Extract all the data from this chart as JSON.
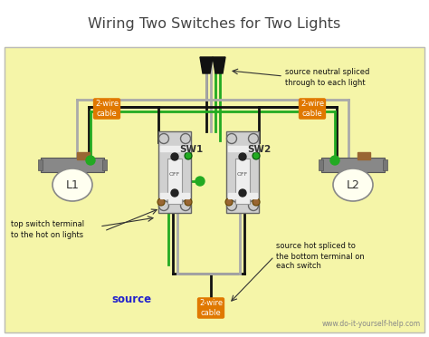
{
  "title": "Wiring Two Switches for Two Lights",
  "bg_color": "#f5f5a8",
  "title_color": "#444444",
  "title_fontsize": 11.5,
  "website": "www.do-it-yourself-help.com",
  "website_color": "#888888",
  "source_label": "source",
  "source_color": "#2222cc",
  "cable_bg_color": "#e07800",
  "annotations": {
    "top_right": "source neutral spliced\nthrough to each light",
    "bottom_left_1": "top switch terminal",
    "bottom_left_2": "to the hot on lights",
    "bottom_right_1": "source hot spliced to",
    "bottom_right_2": "the bottom terminal on",
    "bottom_right_3": "each switch"
  },
  "sw1_label": "SW1",
  "sw2_label": "SW2",
  "l1_label": "L1",
  "l2_label": "L2",
  "off_label": "OFF",
  "wire": {
    "black": "#111111",
    "gray": "#aaaaaa",
    "green": "#22aa22",
    "brown": "#996633"
  }
}
